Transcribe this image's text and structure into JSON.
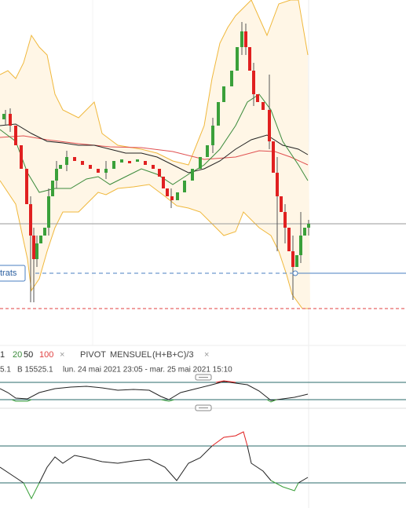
{
  "price_label": "trats",
  "legend": {
    "items": [
      "1",
      "20",
      "50",
      "100"
    ],
    "close": "×",
    "pivot_name": "PIVOT",
    "pivot_period": "MENSUEL",
    "pivot_formula": "(H+B+C)/3",
    "pivot_close": "×"
  },
  "info": {
    "left": "5.1",
    "low": "B 15525.1",
    "range": "lun. 24 mai 2021 23:05 - mar. 25 mai 2021 15:10"
  }
}
